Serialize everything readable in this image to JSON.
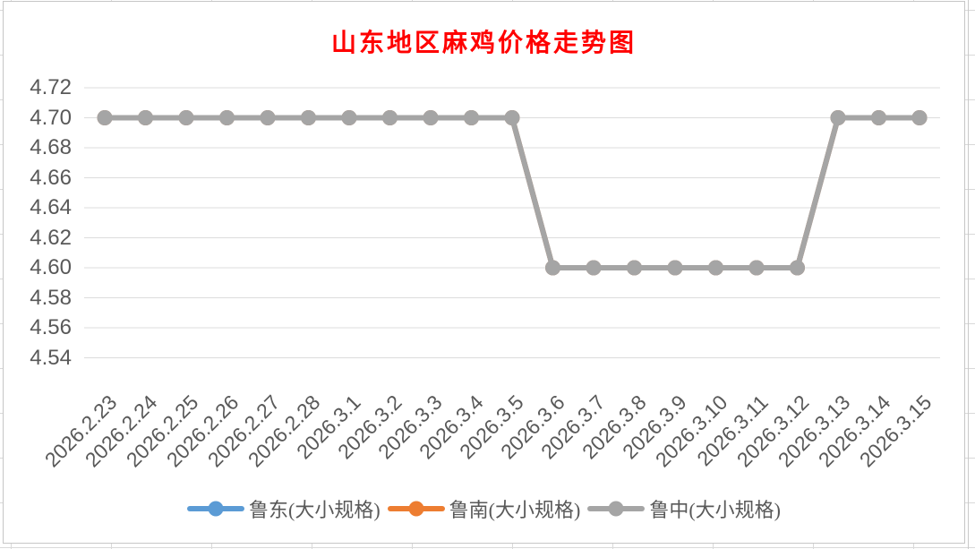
{
  "chart_data": {
    "type": "line",
    "title": "山东地区麻鸡价格走势图",
    "title_color": "#FF0000",
    "axis_text_color": "#595959",
    "gridline_color": "#dcdcdc",
    "grid": true,
    "legend_position": "bottom",
    "xlabel": "",
    "ylabel": "",
    "ylim": [
      4.54,
      4.72
    ],
    "y_step": 0.02,
    "y_ticks": [
      "4.72",
      "4.70",
      "4.68",
      "4.66",
      "4.64",
      "4.62",
      "4.60",
      "4.58",
      "4.56",
      "4.54"
    ],
    "categories": [
      "2026.2.23",
      "2026.2.24",
      "2026.2.25",
      "2026.2.26",
      "2026.2.27",
      "2026.2.28",
      "2026.3.1",
      "2026.3.2",
      "2026.3.3",
      "2026.3.4",
      "2026.3.5",
      "2026.3.6",
      "2026.3.7",
      "2026.3.8",
      "2026.3.9",
      "2026.3.10",
      "2026.3.11",
      "2026.3.12",
      "2026.3.13",
      "2026.3.14",
      "2026.3.15"
    ],
    "series": [
      {
        "name": "鲁东(大小规格)",
        "key": "ludong",
        "color": "#5B9BD5",
        "values": [
          4.7,
          4.7,
          4.7,
          4.7,
          4.7,
          4.7,
          4.7,
          4.7,
          4.7,
          4.7,
          4.7,
          4.6,
          4.6,
          4.6,
          4.6,
          4.6,
          4.6,
          4.6,
          4.7,
          4.7,
          4.7
        ]
      },
      {
        "name": "鲁南(大小规格)",
        "key": "lunan",
        "color": "#ED7D31",
        "values": [
          4.7,
          4.7,
          4.7,
          4.7,
          4.7,
          4.7,
          4.7,
          4.7,
          4.7,
          4.7,
          4.7,
          4.6,
          4.6,
          4.6,
          4.6,
          4.6,
          4.6,
          4.6,
          4.7,
          4.7,
          4.7
        ]
      },
      {
        "name": "鲁中(大小规格)",
        "key": "luzhong",
        "color": "#A5A5A5",
        "values": [
          4.7,
          4.7,
          4.7,
          4.7,
          4.7,
          4.7,
          4.7,
          4.7,
          4.7,
          4.7,
          4.7,
          4.6,
          4.6,
          4.6,
          4.6,
          4.6,
          4.6,
          4.6,
          4.7,
          4.7,
          4.7
        ]
      }
    ]
  }
}
